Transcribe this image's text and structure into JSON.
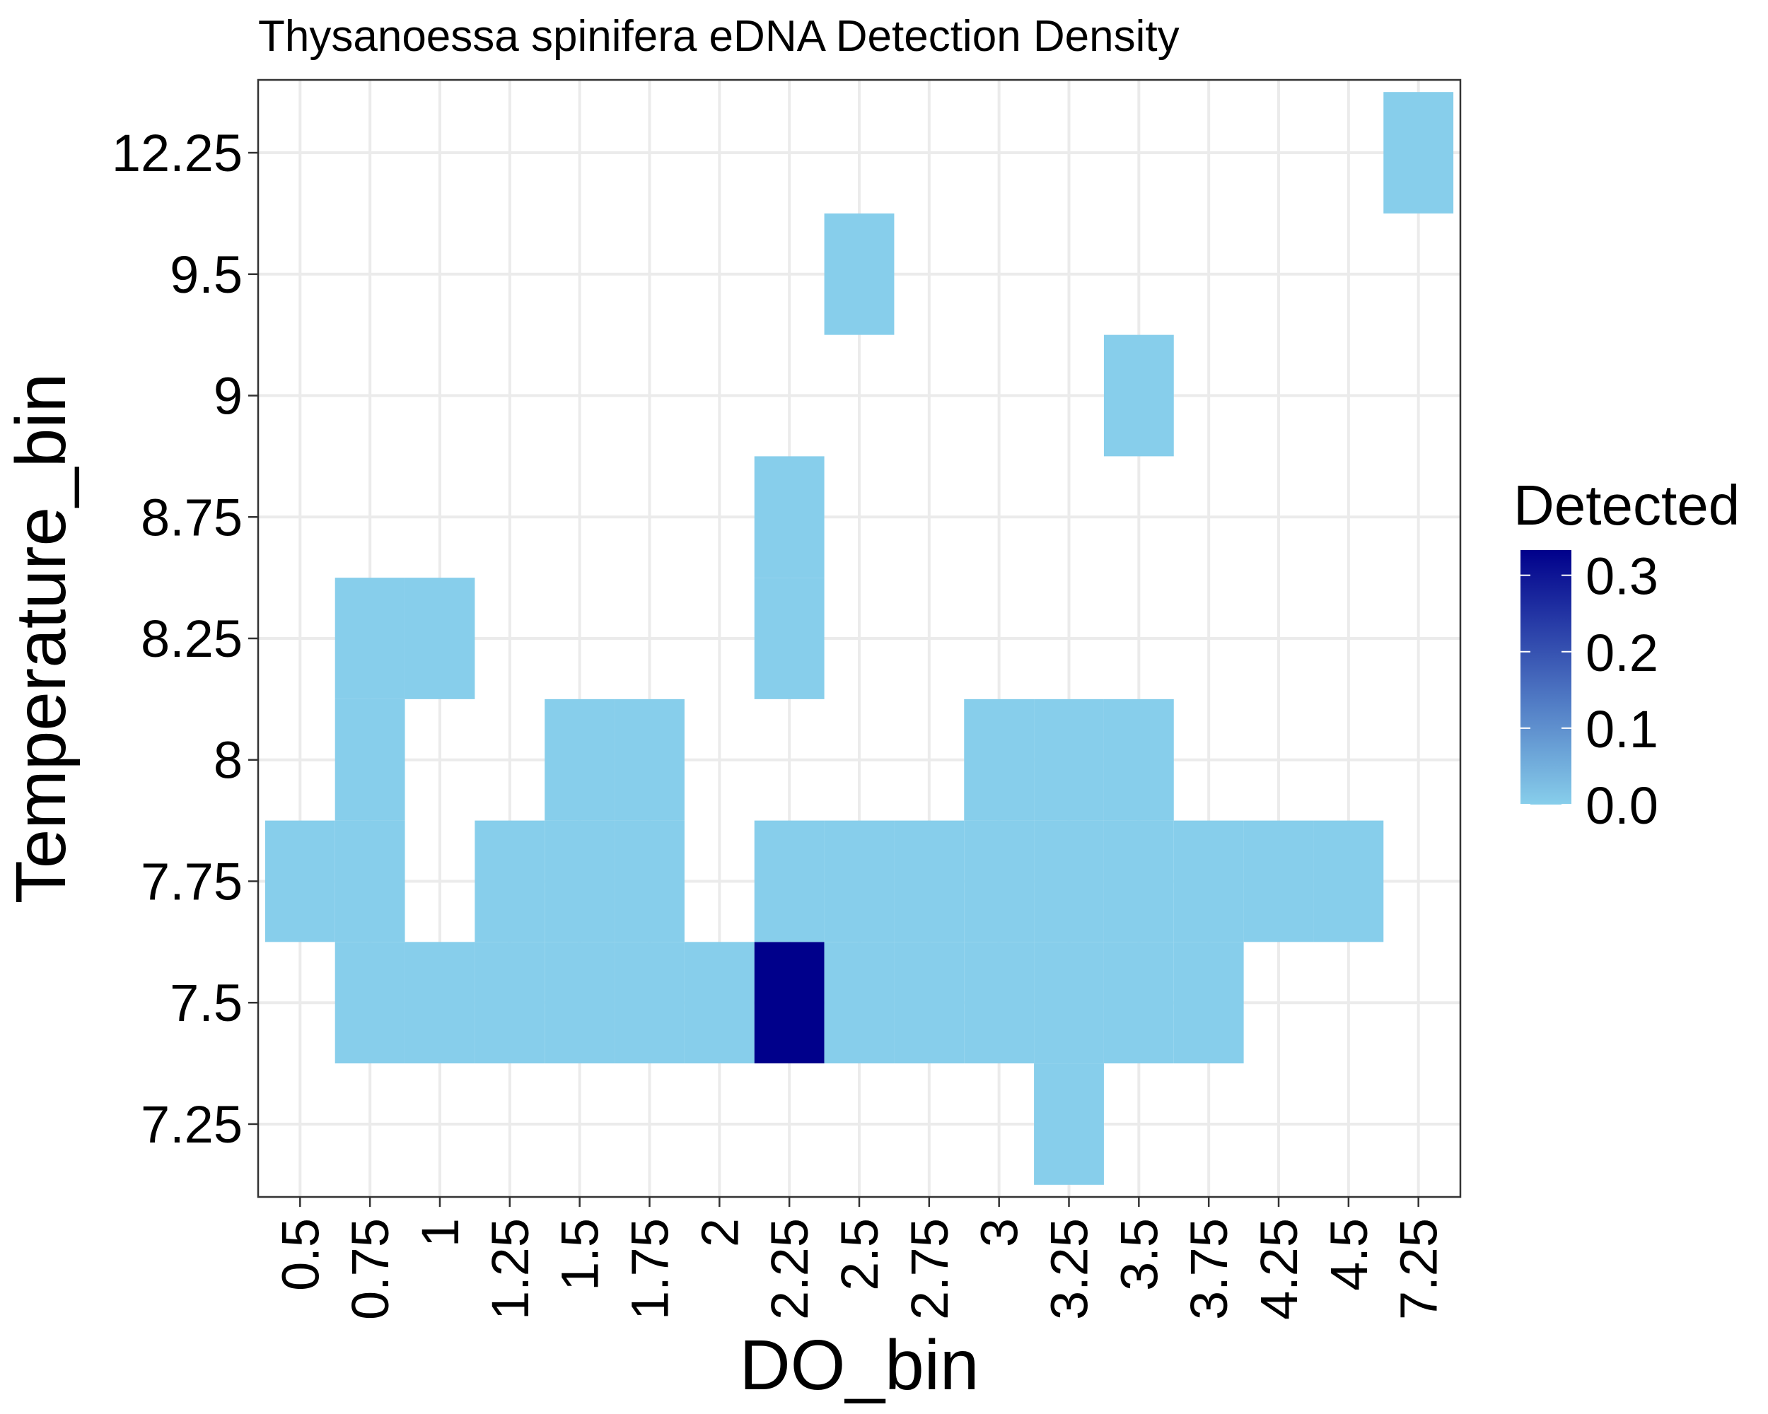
{
  "chart_data": {
    "type": "heatmap",
    "title": "Thysanoessa spinifera eDNA Detection Density",
    "xlabel": "DO_bin",
    "ylabel": "Temperature_bin",
    "x_categories": [
      "0.5",
      "0.75",
      "1",
      "1.25",
      "1.5",
      "1.75",
      "2",
      "2.25",
      "2.5",
      "2.75",
      "3",
      "3.25",
      "3.5",
      "3.75",
      "4.25",
      "4.5",
      "7.25"
    ],
    "y_categories": [
      "7.25",
      "7.5",
      "7.75",
      "8",
      "8.25",
      "8.75",
      "9",
      "9.5",
      "12.25"
    ],
    "fill_variable": "Detected",
    "color_scale": {
      "low": "#87CEEB",
      "high": "#00008B",
      "limits": [
        0,
        0.333
      ]
    },
    "legend": {
      "title": "Detected",
      "ticks": [
        "0.0",
        "0.1",
        "0.2",
        "0.3"
      ],
      "tick_values": [
        0,
        0.1,
        0.2,
        0.3
      ],
      "placement": "right"
    },
    "grid": true,
    "cells": [
      {
        "x": "0.5",
        "y": "7.75",
        "value": 0
      },
      {
        "x": "0.75",
        "y": "7.5",
        "value": 0
      },
      {
        "x": "0.75",
        "y": "7.75",
        "value": 0
      },
      {
        "x": "0.75",
        "y": "8",
        "value": 0
      },
      {
        "x": "0.75",
        "y": "8.25",
        "value": 0
      },
      {
        "x": "1",
        "y": "7.5",
        "value": 0
      },
      {
        "x": "1",
        "y": "8.25",
        "value": 0
      },
      {
        "x": "1.25",
        "y": "7.5",
        "value": 0
      },
      {
        "x": "1.25",
        "y": "7.75",
        "value": 0
      },
      {
        "x": "1.5",
        "y": "7.5",
        "value": 0
      },
      {
        "x": "1.5",
        "y": "7.75",
        "value": 0
      },
      {
        "x": "1.5",
        "y": "8",
        "value": 0
      },
      {
        "x": "1.75",
        "y": "7.5",
        "value": 0
      },
      {
        "x": "1.75",
        "y": "7.75",
        "value": 0
      },
      {
        "x": "1.75",
        "y": "8",
        "value": 0
      },
      {
        "x": "2",
        "y": "7.5",
        "value": 0
      },
      {
        "x": "2.25",
        "y": "7.5",
        "value": 0.333
      },
      {
        "x": "2.25",
        "y": "7.75",
        "value": 0
      },
      {
        "x": "2.25",
        "y": "8.25",
        "value": 0
      },
      {
        "x": "2.25",
        "y": "8.75",
        "value": 0
      },
      {
        "x": "2.5",
        "y": "7.5",
        "value": 0
      },
      {
        "x": "2.5",
        "y": "7.75",
        "value": 0
      },
      {
        "x": "2.5",
        "y": "9.5",
        "value": 0
      },
      {
        "x": "2.75",
        "y": "7.5",
        "value": 0
      },
      {
        "x": "2.75",
        "y": "7.75",
        "value": 0
      },
      {
        "x": "3",
        "y": "7.5",
        "value": 0
      },
      {
        "x": "3",
        "y": "7.75",
        "value": 0
      },
      {
        "x": "3",
        "y": "8",
        "value": 0
      },
      {
        "x": "3.25",
        "y": "7.25",
        "value": 0
      },
      {
        "x": "3.25",
        "y": "7.5",
        "value": 0
      },
      {
        "x": "3.25",
        "y": "7.75",
        "value": 0
      },
      {
        "x": "3.25",
        "y": "8",
        "value": 0
      },
      {
        "x": "3.5",
        "y": "7.5",
        "value": 0
      },
      {
        "x": "3.5",
        "y": "7.75",
        "value": 0
      },
      {
        "x": "3.5",
        "y": "8",
        "value": 0
      },
      {
        "x": "3.5",
        "y": "9",
        "value": 0
      },
      {
        "x": "3.75",
        "y": "7.5",
        "value": 0
      },
      {
        "x": "3.75",
        "y": "7.75",
        "value": 0
      },
      {
        "x": "4.25",
        "y": "7.75",
        "value": 0
      },
      {
        "x": "4.5",
        "y": "7.75",
        "value": 0
      },
      {
        "x": "7.25",
        "y": "12.25",
        "value": 0
      }
    ]
  }
}
